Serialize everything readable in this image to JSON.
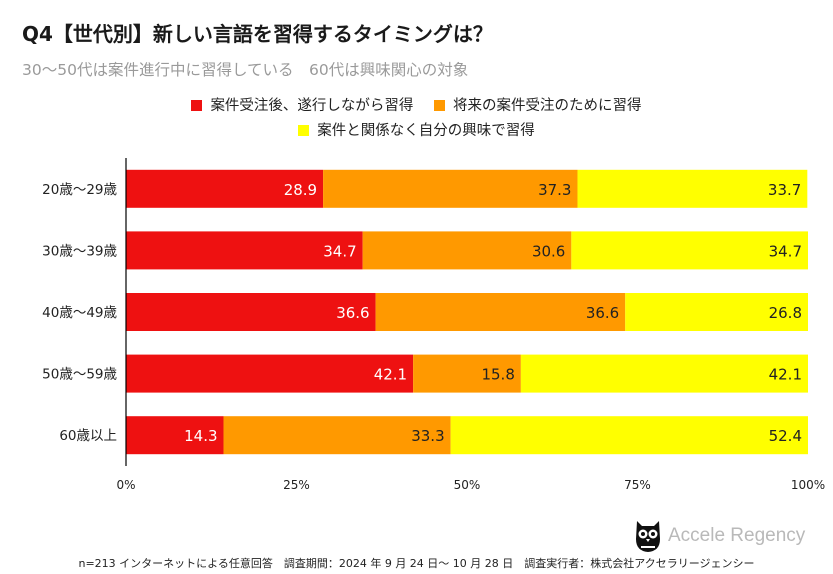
{
  "header": {
    "title": "Q4【世代別】新しい言語を習得するタイミングは？",
    "subtitle": "30〜50代は案件進行中に習得している　60代は興味関心の対象"
  },
  "colors": {
    "series1": "#ee1111",
    "series2": "#ff9900",
    "series3": "#ffff00",
    "axis": "#000000",
    "grid": "#cccccc"
  },
  "chart_data": {
    "type": "bar",
    "orientation": "horizontal",
    "stacked": true,
    "title": "Q4【世代別】新しい言語を習得するタイミングは？",
    "subtitle": "30〜50代は案件進行中に習得している　60代は興味関心の対象",
    "categories": [
      "20歳〜29歳",
      "30歳〜39歳",
      "40歳〜49歳",
      "50歳〜59歳",
      "60歳以上"
    ],
    "series": [
      {
        "name": "案件受注後、遂行しながら習得",
        "values": [
          28.9,
          34.7,
          36.6,
          42.1,
          14.3
        ]
      },
      {
        "name": "将来の案件受注のために習得",
        "values": [
          37.3,
          30.6,
          36.6,
          15.8,
          33.3
        ]
      },
      {
        "name": "案件と関係なく自分の興味で習得",
        "values": [
          33.7,
          34.7,
          26.8,
          42.1,
          52.4
        ]
      }
    ],
    "xlim": [
      0,
      100
    ],
    "xticks": [
      "0%",
      "25%",
      "50%",
      "75%",
      "100%"
    ],
    "legend_position": "top"
  },
  "brand": {
    "name": "Accele Regency"
  },
  "footer": {
    "note": "n=213 インターネットによる任意回答　調査期間：2024 年 9 月 24 日〜 10 月 28 日　調査実行者：株式会社アクセラリージェンシー"
  }
}
